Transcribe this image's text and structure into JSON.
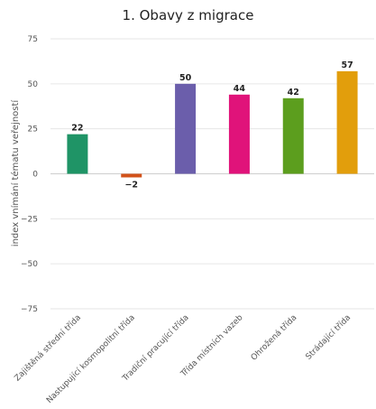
{
  "chart_data": {
    "type": "bar",
    "title": "1. Obavy z migrace",
    "ylabel": "index vnímání tématu veřejností",
    "xlabel": "",
    "ylim": [
      -75,
      75
    ],
    "yticks": [
      75,
      50,
      25,
      0,
      -25,
      -50,
      -75
    ],
    "grid": true,
    "categories": [
      "Zajištěná střední třída",
      "Nastupující kosmopolitní třída",
      "Tradiční pracující třída",
      "Třída místních vazeb",
      "Ohrožená třída",
      "Strádající třída"
    ],
    "values": [
      22,
      -2,
      50,
      44,
      42,
      57
    ],
    "colors": [
      "#1f9466",
      "#d2521a",
      "#6b5eab",
      "#e0137a",
      "#5c9e1e",
      "#e29e0c"
    ]
  }
}
